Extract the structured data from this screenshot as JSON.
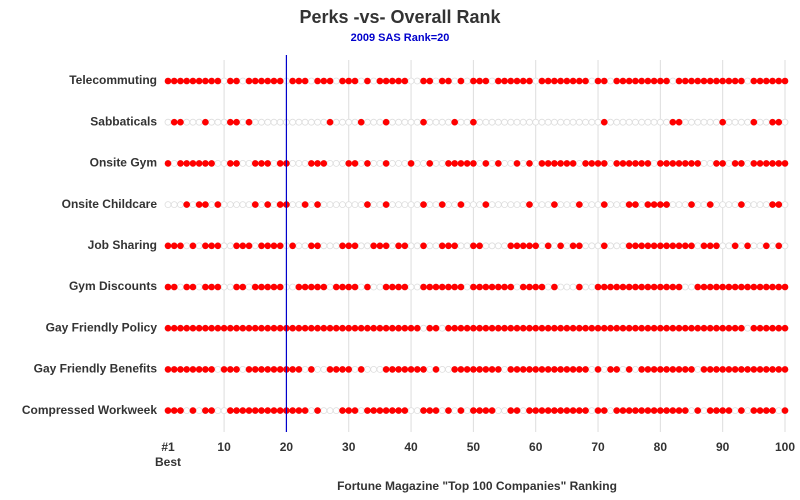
{
  "chart_data": {
    "type": "dot-matrix",
    "title": "Perks -vs- Overall Rank",
    "subtitle": "2009 SAS Rank=20",
    "x_label": "Fortune Magazine \"Top 100 Companies\" Ranking",
    "xlim": [
      1,
      100
    ],
    "xticks": [
      {
        "value": 1,
        "label": "#1"
      },
      10,
      20,
      30,
      40,
      50,
      60,
      70,
      80,
      90,
      100
    ],
    "best_label": "Best",
    "reference_line": 20,
    "reference_color": "#0000cc",
    "color": "#ff0000",
    "grid": true,
    "series": [
      {
        "name": "Telecommuting",
        "values": [
          1,
          2,
          3,
          4,
          5,
          6,
          7,
          8,
          9,
          11,
          12,
          14,
          15,
          16,
          17,
          18,
          19,
          21,
          22,
          23,
          25,
          26,
          27,
          29,
          30,
          31,
          33,
          35,
          36,
          37,
          38,
          39,
          42,
          43,
          45,
          46,
          48,
          50,
          51,
          52,
          54,
          55,
          56,
          57,
          58,
          59,
          61,
          62,
          63,
          64,
          65,
          66,
          67,
          68,
          70,
          71,
          73,
          74,
          75,
          76,
          77,
          78,
          79,
          80,
          81,
          83,
          84,
          85,
          86,
          87,
          88,
          89,
          90,
          91,
          92,
          93,
          95,
          96,
          97,
          98,
          99,
          100
        ]
      },
      {
        "name": "Sabbaticals",
        "values": [
          2,
          3,
          7,
          11,
          12,
          14,
          27,
          32,
          36,
          42,
          47,
          50,
          71,
          82,
          83,
          90,
          95,
          98,
          99
        ]
      },
      {
        "name": "Onsite Gym",
        "values": [
          1,
          3,
          4,
          5,
          6,
          7,
          8,
          11,
          12,
          15,
          16,
          17,
          19,
          20,
          24,
          25,
          26,
          30,
          31,
          33,
          36,
          40,
          43,
          46,
          47,
          48,
          49,
          50,
          52,
          54,
          57,
          59,
          61,
          62,
          63,
          64,
          65,
          66,
          68,
          69,
          70,
          71,
          73,
          74,
          75,
          76,
          77,
          78,
          80,
          81,
          82,
          83,
          84,
          85,
          86,
          89,
          90,
          92,
          93,
          95,
          96,
          97,
          98,
          99,
          100
        ]
      },
      {
        "name": "Onsite Childcare",
        "values": [
          4,
          6,
          7,
          9,
          15,
          17,
          19,
          20,
          23,
          25,
          33,
          36,
          42,
          45,
          48,
          52,
          59,
          63,
          67,
          71,
          75,
          76,
          78,
          79,
          80,
          81,
          85,
          88,
          93,
          98,
          99
        ]
      },
      {
        "name": "Job Sharing",
        "values": [
          1,
          2,
          3,
          5,
          7,
          8,
          9,
          12,
          13,
          14,
          16,
          17,
          18,
          19,
          21,
          24,
          25,
          29,
          30,
          31,
          34,
          35,
          36,
          38,
          39,
          42,
          45,
          46,
          47,
          50,
          51,
          56,
          57,
          58,
          59,
          60,
          62,
          64,
          66,
          67,
          71,
          75,
          76,
          77,
          78,
          79,
          80,
          81,
          82,
          83,
          84,
          85,
          87,
          88,
          89,
          92,
          94,
          97,
          99
        ]
      },
      {
        "name": "Gym Discounts",
        "values": [
          1,
          2,
          4,
          5,
          7,
          8,
          9,
          12,
          13,
          15,
          16,
          17,
          18,
          19,
          22,
          23,
          24,
          25,
          26,
          28,
          29,
          30,
          31,
          33,
          36,
          37,
          38,
          39,
          42,
          43,
          44,
          45,
          46,
          47,
          48,
          50,
          51,
          52,
          53,
          54,
          55,
          56,
          58,
          59,
          60,
          61,
          63,
          67,
          70,
          71,
          72,
          73,
          74,
          75,
          76,
          77,
          78,
          79,
          80,
          81,
          82,
          83,
          86,
          87,
          88,
          89,
          90,
          91,
          92,
          93,
          94,
          95,
          96,
          97,
          98,
          99,
          100
        ]
      },
      {
        "name": "Gay Friendly Policy",
        "values": [
          1,
          2,
          3,
          4,
          5,
          6,
          7,
          8,
          9,
          10,
          11,
          12,
          13,
          14,
          15,
          16,
          17,
          18,
          19,
          20,
          21,
          22,
          23,
          24,
          25,
          26,
          27,
          28,
          29,
          30,
          31,
          32,
          33,
          34,
          35,
          36,
          37,
          38,
          39,
          40,
          41,
          43,
          44,
          46,
          47,
          48,
          49,
          50,
          51,
          52,
          53,
          54,
          55,
          56,
          57,
          58,
          59,
          60,
          61,
          62,
          63,
          64,
          65,
          66,
          67,
          68,
          69,
          70,
          71,
          72,
          73,
          74,
          75,
          76,
          77,
          78,
          79,
          80,
          81,
          82,
          83,
          84,
          85,
          86,
          87,
          88,
          89,
          90,
          91,
          92,
          93,
          95,
          96,
          97,
          98,
          99,
          100
        ]
      },
      {
        "name": "Gay Friendly Benefits",
        "values": [
          1,
          2,
          3,
          4,
          5,
          6,
          7,
          8,
          10,
          11,
          12,
          14,
          15,
          16,
          17,
          18,
          19,
          20,
          21,
          22,
          24,
          27,
          28,
          29,
          30,
          32,
          36,
          37,
          38,
          39,
          40,
          41,
          42,
          44,
          47,
          48,
          49,
          50,
          51,
          52,
          53,
          54,
          56,
          57,
          58,
          59,
          60,
          61,
          62,
          63,
          64,
          65,
          66,
          67,
          68,
          70,
          72,
          73,
          75,
          77,
          78,
          79,
          80,
          81,
          82,
          83,
          84,
          85,
          87,
          88,
          89,
          90,
          91,
          92,
          93,
          94,
          95,
          96,
          97,
          98,
          99,
          100
        ]
      },
      {
        "name": "Compressed Workweek",
        "values": [
          1,
          2,
          3,
          5,
          7,
          8,
          11,
          12,
          13,
          14,
          15,
          16,
          17,
          18,
          19,
          20,
          21,
          22,
          23,
          25,
          29,
          30,
          31,
          33,
          34,
          35,
          36,
          37,
          38,
          39,
          42,
          43,
          44,
          46,
          48,
          50,
          51,
          52,
          53,
          56,
          57,
          59,
          60,
          61,
          62,
          63,
          64,
          65,
          66,
          67,
          68,
          70,
          71,
          73,
          74,
          75,
          76,
          77,
          78,
          79,
          80,
          81,
          82,
          83,
          84,
          86,
          88,
          89,
          90,
          91,
          93,
          95,
          96,
          97,
          98,
          100
        ]
      }
    ]
  }
}
